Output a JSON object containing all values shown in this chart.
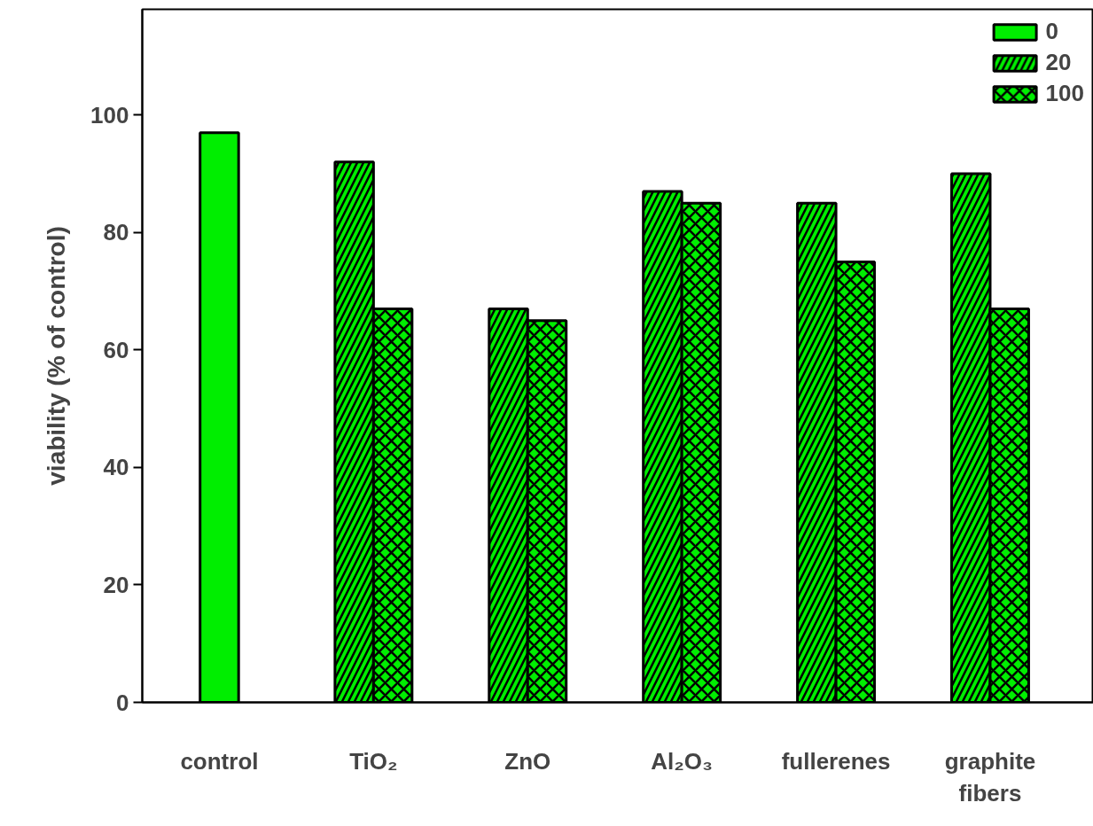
{
  "chart_data": {
    "type": "bar",
    "ylabel": "viability (% of control)",
    "categories": [
      "control",
      "TiO₂",
      "ZnO",
      "Al₂O₃",
      "fullerenes",
      "graphite fibers"
    ],
    "series": [
      {
        "name": "0",
        "color": "#00ee00",
        "values": [
          97,
          null,
          null,
          null,
          null,
          null
        ]
      },
      {
        "name": "20",
        "color": "#00ee00",
        "values": [
          null,
          92,
          67,
          87,
          85,
          90
        ]
      },
      {
        "name": "100",
        "color": "#00ee00",
        "values": [
          null,
          67,
          65,
          85,
          75,
          67
        ]
      }
    ],
    "ylim": [
      0,
      118
    ],
    "yticks": [
      0,
      20,
      40,
      60,
      80,
      100
    ],
    "grid": false,
    "legend": "top right"
  }
}
